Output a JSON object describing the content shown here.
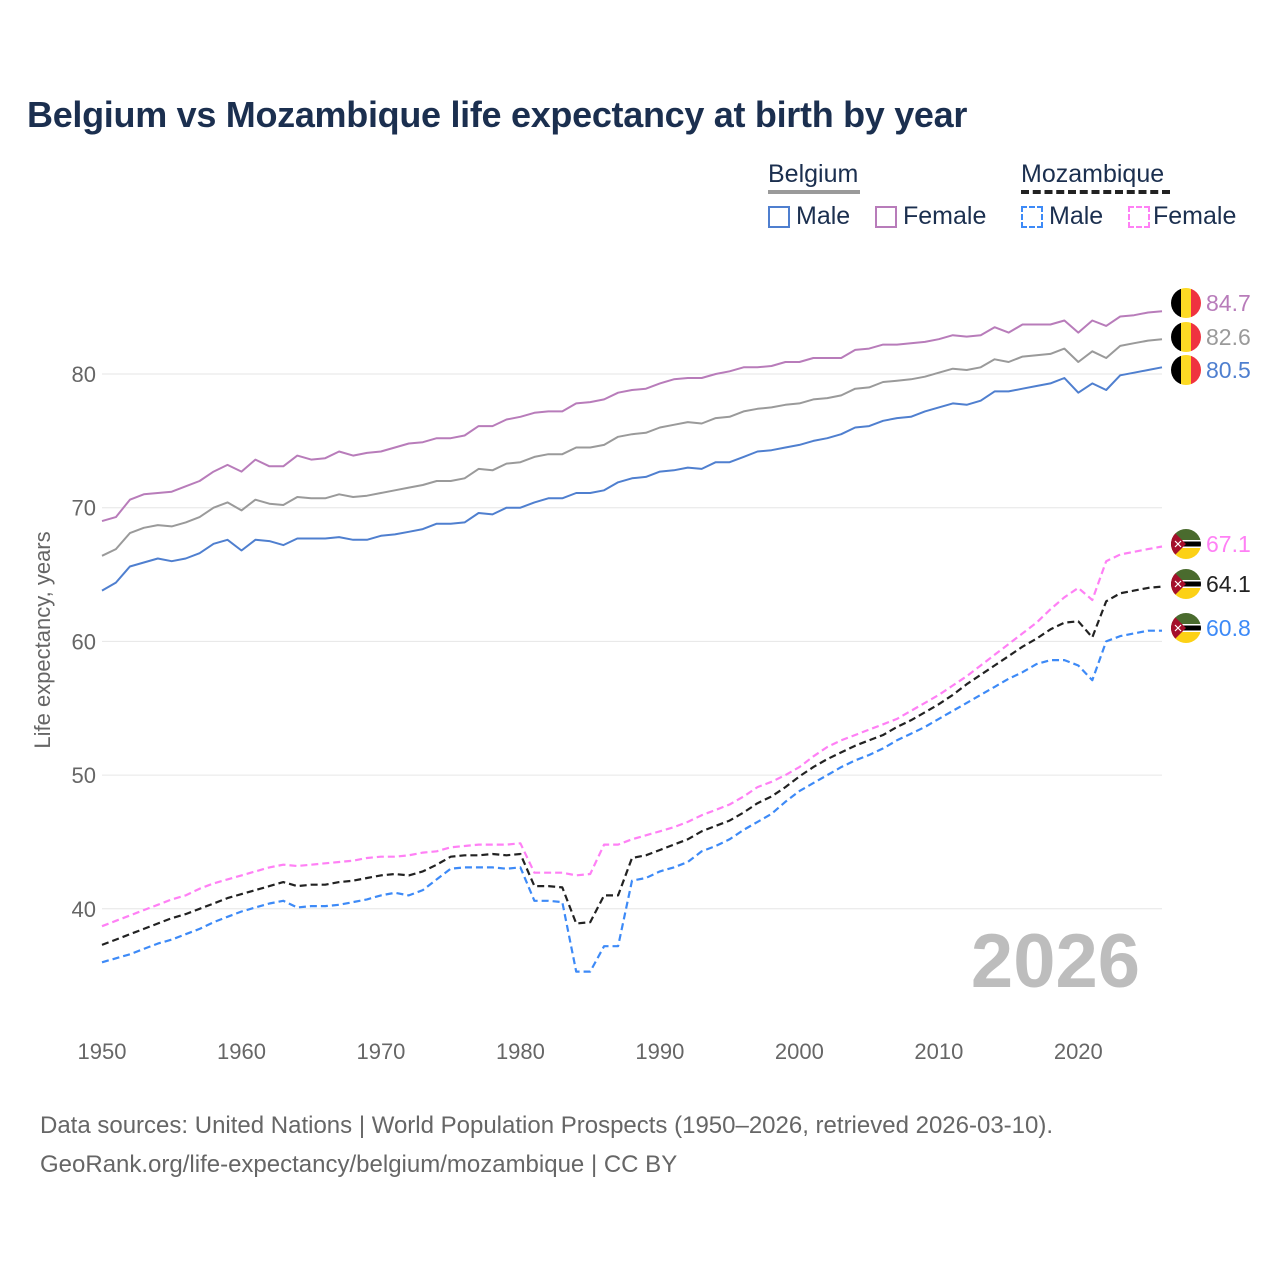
{
  "chart_data": {
    "type": "line",
    "title": "Belgium vs Mozambique life expectancy at birth by year",
    "xlabel": "",
    "ylabel": "Life expectancy, years",
    "xlim": [
      1950,
      2026
    ],
    "ylim": [
      33,
      88
    ],
    "x_ticks": [
      1950,
      1960,
      1970,
      1980,
      1990,
      2000,
      2010,
      2020
    ],
    "y_ticks": [
      40,
      50,
      60,
      70,
      80
    ],
    "grid": true,
    "legend_placement": "top-right",
    "legend": {
      "groups": [
        {
          "name": "Belgium",
          "items": [
            "Male",
            "Female"
          ]
        },
        {
          "name": "Mozambique",
          "items": [
            "Male",
            "Female"
          ]
        }
      ]
    },
    "year_annotation": "2026",
    "x_start": 1950,
    "series": [
      {
        "name": "Belgium Female",
        "country": "Belgium",
        "sex": "Female",
        "color": "#b87cba",
        "dashed": false,
        "end_label": "84.7",
        "values": [
          69.0,
          69.3,
          70.6,
          71.0,
          71.1,
          71.2,
          71.6,
          72.0,
          72.7,
          73.2,
          72.7,
          73.6,
          73.1,
          73.1,
          73.9,
          73.6,
          73.7,
          74.2,
          73.9,
          74.1,
          74.2,
          74.5,
          74.8,
          74.9,
          75.2,
          75.2,
          75.4,
          76.1,
          76.1,
          76.6,
          76.8,
          77.1,
          77.2,
          77.2,
          77.8,
          77.9,
          78.1,
          78.6,
          78.8,
          78.9,
          79.3,
          79.6,
          79.7,
          79.7,
          80.0,
          80.2,
          80.5,
          80.5,
          80.6,
          80.9,
          80.9,
          81.2,
          81.2,
          81.2,
          81.8,
          81.9,
          82.2,
          82.2,
          82.3,
          82.4,
          82.6,
          82.9,
          82.8,
          82.9,
          83.5,
          83.1,
          83.7,
          83.7,
          83.7,
          84.0,
          83.1,
          84.0,
          83.6,
          84.3,
          84.4,
          84.6,
          84.7
        ]
      },
      {
        "name": "Belgium Total",
        "country": "Belgium",
        "sex": "Total",
        "color": "#9a9a9a",
        "dashed": false,
        "end_label": "82.6",
        "values": [
          66.4,
          66.9,
          68.1,
          68.5,
          68.7,
          68.6,
          68.9,
          69.3,
          70.0,
          70.4,
          69.8,
          70.6,
          70.3,
          70.2,
          70.8,
          70.7,
          70.7,
          71.0,
          70.8,
          70.9,
          71.1,
          71.3,
          71.5,
          71.7,
          72.0,
          72.0,
          72.2,
          72.9,
          72.8,
          73.3,
          73.4,
          73.8,
          74.0,
          74.0,
          74.5,
          74.5,
          74.7,
          75.3,
          75.5,
          75.6,
          76.0,
          76.2,
          76.4,
          76.3,
          76.7,
          76.8,
          77.2,
          77.4,
          77.5,
          77.7,
          77.8,
          78.1,
          78.2,
          78.4,
          78.9,
          79.0,
          79.4,
          79.5,
          79.6,
          79.8,
          80.1,
          80.4,
          80.3,
          80.5,
          81.1,
          80.9,
          81.3,
          81.4,
          81.5,
          81.9,
          80.9,
          81.7,
          81.2,
          82.1,
          82.3,
          82.5,
          82.6
        ]
      },
      {
        "name": "Belgium Male",
        "country": "Belgium",
        "sex": "Male",
        "color": "#4f7fcf",
        "dashed": false,
        "end_label": "80.5",
        "values": [
          63.8,
          64.4,
          65.6,
          65.9,
          66.2,
          66.0,
          66.2,
          66.6,
          67.3,
          67.6,
          66.8,
          67.6,
          67.5,
          67.2,
          67.7,
          67.7,
          67.7,
          67.8,
          67.6,
          67.6,
          67.9,
          68.0,
          68.2,
          68.4,
          68.8,
          68.8,
          68.9,
          69.6,
          69.5,
          70.0,
          70.0,
          70.4,
          70.7,
          70.7,
          71.1,
          71.1,
          71.3,
          71.9,
          72.2,
          72.3,
          72.7,
          72.8,
          73.0,
          72.9,
          73.4,
          73.4,
          73.8,
          74.2,
          74.3,
          74.5,
          74.7,
          75.0,
          75.2,
          75.5,
          76.0,
          76.1,
          76.5,
          76.7,
          76.8,
          77.2,
          77.5,
          77.8,
          77.7,
          78.0,
          78.7,
          78.7,
          78.9,
          79.1,
          79.3,
          79.7,
          78.6,
          79.3,
          78.8,
          79.9,
          80.1,
          80.3,
          80.5
        ]
      },
      {
        "name": "Mozambique Female",
        "country": "Mozambique",
        "sex": "Female",
        "color": "#ff80f5",
        "dashed": true,
        "end_label": "67.1",
        "values": [
          38.7,
          39.1,
          39.5,
          39.9,
          40.3,
          40.7,
          41.0,
          41.5,
          41.9,
          42.2,
          42.5,
          42.8,
          43.1,
          43.3,
          43.2,
          43.3,
          43.4,
          43.5,
          43.6,
          43.8,
          43.9,
          43.9,
          44.0,
          44.2,
          44.3,
          44.6,
          44.7,
          44.8,
          44.8,
          44.8,
          44.9,
          42.7,
          42.7,
          42.7,
          42.5,
          42.6,
          44.8,
          44.8,
          45.2,
          45.5,
          45.8,
          46.1,
          46.5,
          47.0,
          47.4,
          47.8,
          48.4,
          49.1,
          49.5,
          50.0,
          50.6,
          51.4,
          52.1,
          52.6,
          53.0,
          53.4,
          53.8,
          54.2,
          54.8,
          55.4,
          56.0,
          56.7,
          57.4,
          58.2,
          59.0,
          59.8,
          60.6,
          61.4,
          62.4,
          63.3,
          64.0,
          63.1,
          66.0,
          66.5,
          66.7,
          66.9,
          67.1
        ]
      },
      {
        "name": "Mozambique Total",
        "country": "Mozambique",
        "sex": "Total",
        "color": "#222222",
        "dashed": true,
        "end_label": "64.1",
        "values": [
          37.3,
          37.7,
          38.1,
          38.5,
          38.9,
          39.3,
          39.6,
          40.0,
          40.4,
          40.8,
          41.1,
          41.4,
          41.7,
          42.0,
          41.7,
          41.8,
          41.8,
          42.0,
          42.1,
          42.3,
          42.5,
          42.6,
          42.5,
          42.8,
          43.3,
          43.9,
          44.0,
          44.0,
          44.1,
          44.0,
          44.1,
          41.7,
          41.7,
          41.6,
          38.9,
          39.0,
          41.0,
          41.0,
          43.8,
          44.0,
          44.4,
          44.8,
          45.2,
          45.8,
          46.2,
          46.6,
          47.2,
          47.9,
          48.4,
          49.1,
          49.9,
          50.6,
          51.2,
          51.7,
          52.2,
          52.6,
          53.0,
          53.6,
          54.1,
          54.7,
          55.3,
          56.0,
          56.8,
          57.5,
          58.2,
          58.9,
          59.6,
          60.2,
          60.9,
          61.4,
          61.5,
          60.3,
          63.0,
          63.6,
          63.8,
          64.0,
          64.1
        ]
      },
      {
        "name": "Mozambique Male",
        "country": "Mozambique",
        "sex": "Male",
        "color": "#3d8af7",
        "dashed": true,
        "end_label": "60.8",
        "values": [
          36.0,
          36.3,
          36.6,
          37.0,
          37.4,
          37.7,
          38.1,
          38.5,
          39.0,
          39.4,
          39.8,
          40.1,
          40.4,
          40.6,
          40.1,
          40.2,
          40.2,
          40.3,
          40.5,
          40.7,
          41.0,
          41.2,
          41.0,
          41.4,
          42.2,
          43.0,
          43.1,
          43.1,
          43.1,
          43.0,
          43.1,
          40.6,
          40.6,
          40.5,
          35.3,
          35.3,
          37.2,
          37.2,
          42.1,
          42.3,
          42.8,
          43.1,
          43.5,
          44.3,
          44.7,
          45.2,
          45.9,
          46.5,
          47.1,
          48.0,
          48.8,
          49.4,
          50.0,
          50.6,
          51.1,
          51.5,
          52.0,
          52.6,
          53.1,
          53.6,
          54.2,
          54.8,
          55.4,
          56.0,
          56.6,
          57.2,
          57.7,
          58.3,
          58.6,
          58.6,
          58.2,
          57.1,
          60.0,
          60.4,
          60.6,
          60.8,
          60.8
        ]
      }
    ]
  },
  "footer": {
    "line1": "Data sources: United Nations | World Population Prospects (1950–2026, retrieved 2026-03-10).",
    "line2": "GeoRank.org/life-expectancy/belgium/mozambique | CC BY"
  }
}
